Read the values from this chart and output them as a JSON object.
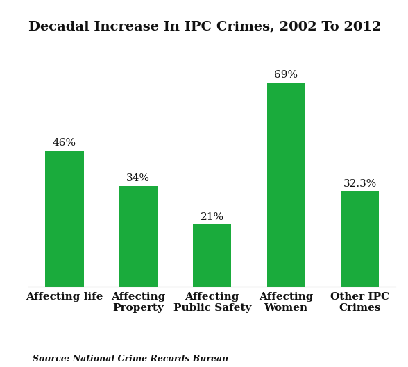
{
  "title": "Decadal Increase In IPC Crimes, 2002 To 2012",
  "categories": [
    "Affecting life",
    "Affecting\nProperty",
    "Affecting\nPublic Safety",
    "Affecting\nWomen",
    "Other IPC\nCrimes"
  ],
  "values": [
    46,
    34,
    21,
    69,
    32.3
  ],
  "labels": [
    "46%",
    "34%",
    "21%",
    "69%",
    "32.3%"
  ],
  "bar_color": "#1aab3c",
  "background_color": "#ffffff",
  "title_fontsize": 14,
  "label_fontsize": 11,
  "tick_fontsize": 11,
  "source_text": "Source: National Crime Records Bureau",
  "source_fontsize": 9,
  "ylim": [
    0,
    82
  ],
  "bar_width": 0.52
}
